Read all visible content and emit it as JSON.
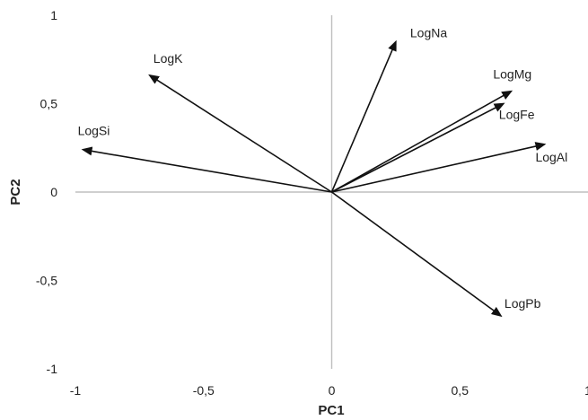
{
  "chart_data": {
    "type": "biplot",
    "xlabel": "PC1",
    "ylabel": "PC2",
    "xlim": [
      -1,
      1
    ],
    "ylim": [
      -1,
      1
    ],
    "x_ticks": [
      "-1",
      "-0,5",
      "0",
      "0,5",
      "1"
    ],
    "y_ticks": [
      "1",
      "0,5",
      "0",
      "-0,5",
      "-1"
    ],
    "grid": false,
    "vectors": [
      {
        "name": "LogNa",
        "x": 0.25,
        "y": 0.85
      },
      {
        "name": "LogMg",
        "x": 0.7,
        "y": 0.57
      },
      {
        "name": "LogFe",
        "x": 0.67,
        "y": 0.5
      },
      {
        "name": "LogAl",
        "x": 0.83,
        "y": 0.27
      },
      {
        "name": "LogK",
        "x": -0.71,
        "y": 0.66
      },
      {
        "name": "LogSi",
        "x": -0.97,
        "y": 0.24
      },
      {
        "name": "LogPb",
        "x": 0.66,
        "y": -0.7
      }
    ]
  }
}
